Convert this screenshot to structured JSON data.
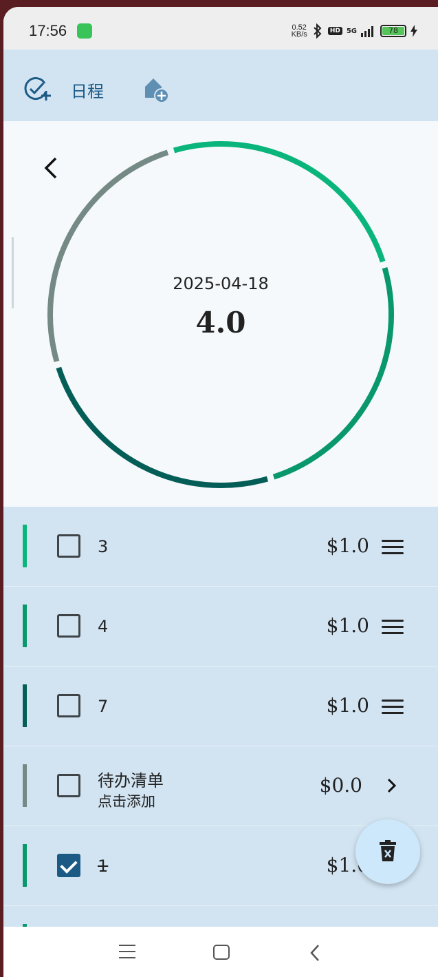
{
  "status_bar": {
    "time": "17:56",
    "net_speed_value": "0.52",
    "net_speed_unit": "KB/s",
    "hd_label": "HD",
    "signal_label": "5G",
    "battery": "78"
  },
  "top_bar": {
    "schedule_label": "日程",
    "icons": [
      "add-task-icon",
      "add-home-icon"
    ]
  },
  "summary": {
    "date": "2025-04-18",
    "total": "4.0",
    "ring_segment_colors": [
      "#09b57a",
      "#09986c",
      "#045e57",
      "#758a84"
    ]
  },
  "items": [
    {
      "title": "3",
      "price": "$1.0",
      "color": "#09b57a",
      "checked": false,
      "action": "drag-handle"
    },
    {
      "title": "4",
      "price": "$1.0",
      "color": "#09986c",
      "checked": false,
      "action": "drag-handle"
    },
    {
      "title": "7",
      "price": "$1.0",
      "color": "#045e57",
      "checked": false,
      "action": "drag-handle"
    },
    {
      "title": "待办清单",
      "subtitle": "点击添加",
      "price": "$0.0",
      "color": "#758a84",
      "checked": false,
      "action": "chevron"
    },
    {
      "title": "1",
      "price": "$1.0",
      "color": "#09986c",
      "checked": true,
      "action": "none"
    }
  ],
  "fab": {
    "icon": "delete-icon"
  },
  "nav_bar": {
    "icons": [
      "menu-icon",
      "home-icon",
      "back-icon"
    ]
  }
}
